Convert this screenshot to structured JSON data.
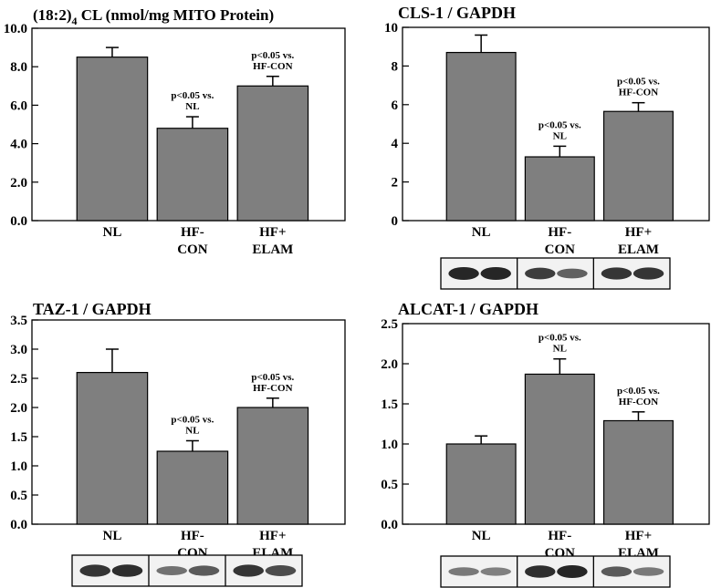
{
  "colors": {
    "bar": "#7f7f7f",
    "axis": "#000000",
    "blot_bg": "#f2f2f2",
    "band": "#1a1a1a"
  },
  "chart_data": [
    {
      "id": "cl",
      "type": "bar",
      "title_prefix": "(18:2)",
      "title_sub": "4",
      "title_suffix": " CL (nmol/mg MITO Protein)",
      "categories": [
        [
          "NL"
        ],
        [
          "HF-",
          "CON"
        ],
        [
          "HF+",
          "ELAM"
        ]
      ],
      "values": [
        8.5,
        4.8,
        7.0
      ],
      "errors": [
        0.5,
        0.6,
        0.5
      ],
      "annotations": [
        null,
        [
          "p<0.05 vs.",
          "NL"
        ],
        [
          "p<0.05 vs.",
          "HF-CON"
        ]
      ],
      "ylim": [
        0,
        10
      ],
      "yticks": [
        0,
        2,
        4,
        6,
        8,
        10
      ],
      "tick_labels": [
        "0.0",
        "2.0",
        "4.0",
        "6.0",
        "8.0",
        "10.0"
      ],
      "blot": null
    },
    {
      "id": "cls1",
      "type": "bar",
      "title": "CLS-1 / GAPDH",
      "categories": [
        [
          "NL"
        ],
        [
          "HF-",
          "CON"
        ],
        [
          "HF+",
          "ELAM"
        ]
      ],
      "values": [
        8.7,
        3.3,
        5.65
      ],
      "errors": [
        0.9,
        0.55,
        0.45
      ],
      "annotations": [
        null,
        [
          "p<0.05 vs.",
          "NL"
        ],
        [
          "p<0.05 vs.",
          "HF-CON"
        ]
      ],
      "ylim": [
        0,
        10
      ],
      "yticks": [
        0,
        2,
        4,
        6,
        8,
        10
      ],
      "tick_labels": [
        "0",
        "2",
        "4",
        "6",
        "8",
        "10"
      ],
      "blot": {
        "groups": [
          [
            1.0,
            1.0
          ],
          [
            0.85,
            0.6
          ],
          [
            0.9,
            0.9
          ]
        ]
      }
    },
    {
      "id": "taz1",
      "type": "bar",
      "title": "TAZ-1 / GAPDH",
      "categories": [
        [
          "NL"
        ],
        [
          "HF-",
          "CON"
        ],
        [
          "HF+",
          "ELAM"
        ]
      ],
      "values": [
        2.6,
        1.25,
        2.0
      ],
      "errors": [
        0.4,
        0.18,
        0.16
      ],
      "annotations": [
        null,
        [
          "p<0.05 vs.",
          "NL"
        ],
        [
          "p<0.05 vs.",
          "HF-CON"
        ]
      ],
      "ylim": [
        0,
        3.5
      ],
      "yticks": [
        0,
        0.5,
        1,
        1.5,
        2,
        2.5,
        3,
        3.5
      ],
      "tick_labels": [
        "0.0",
        "0.5",
        "1.0",
        "1.5",
        "2.0",
        "2.5",
        "3.0",
        "3.5"
      ],
      "blot": {
        "groups": [
          [
            0.9,
            0.95
          ],
          [
            0.5,
            0.65
          ],
          [
            0.9,
            0.75
          ]
        ]
      }
    },
    {
      "id": "alcat1",
      "type": "bar",
      "title": "ALCAT-1 / GAPDH",
      "categories": [
        [
          "NL"
        ],
        [
          "HF-",
          "CON"
        ],
        [
          "HF+",
          "ELAM"
        ]
      ],
      "values": [
        1.0,
        1.87,
        1.29
      ],
      "errors": [
        0.1,
        0.19,
        0.11
      ],
      "annotations": [
        null,
        [
          "p<0.05 vs.",
          "NL"
        ],
        [
          "p<0.05 vs.",
          "HF-CON"
        ]
      ],
      "ylim": [
        0,
        2.5
      ],
      "yticks": [
        0,
        0.5,
        1,
        1.5,
        2,
        2.5
      ],
      "tick_labels": [
        "0.0",
        "0.5",
        "1.0",
        "1.5",
        "2.0",
        "2.5"
      ],
      "blot": {
        "groups": [
          [
            0.45,
            0.4
          ],
          [
            0.95,
            1.0
          ],
          [
            0.65,
            0.45
          ]
        ]
      }
    }
  ]
}
